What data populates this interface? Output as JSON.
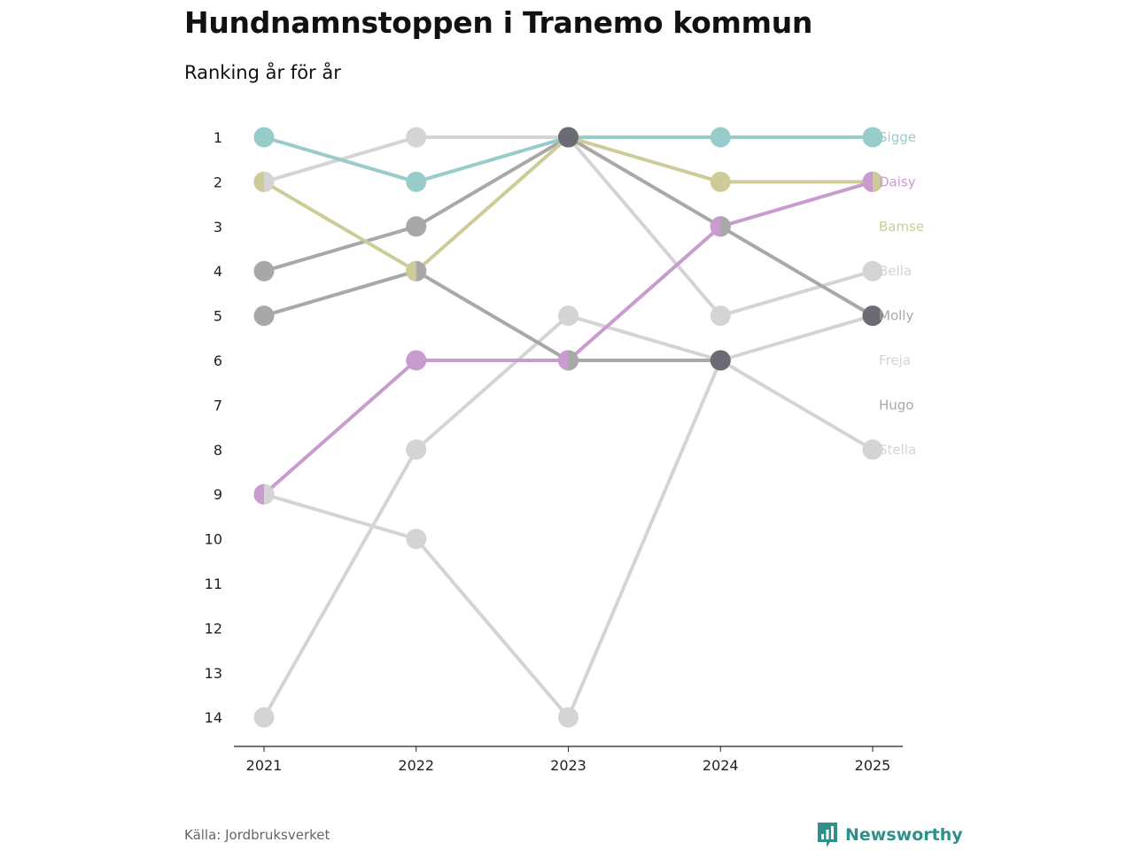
{
  "title": "Hundnamnstoppen i Tranemo kommun",
  "subtitle": "Ranking år för år",
  "source": "Källa: Jordbruksverket",
  "brand": {
    "name": "Newsworthy",
    "icon": "bar-chart-speech-icon",
    "color": "#2f8f8a"
  },
  "chart_data": {
    "type": "line",
    "subtype": "bump",
    "x": [
      "2021",
      "2022",
      "2023",
      "2024",
      "2025"
    ],
    "y_ticks": [
      "1",
      "2",
      "3",
      "4",
      "5",
      "6",
      "7",
      "8",
      "9",
      "10",
      "11",
      "12",
      "13",
      "14"
    ],
    "ylim": [
      1,
      14
    ],
    "y_inverted": true,
    "series": [
      {
        "name": "Freja",
        "color": "#d4d4d4",
        "values": [
          14,
          8,
          5,
          6,
          5
        ]
      },
      {
        "name": "Stella",
        "color": "#d4d4d4",
        "values": [
          9,
          10,
          14,
          6,
          8
        ]
      },
      {
        "name": "Bella",
        "color": "#d4d4d4",
        "values": [
          2,
          1,
          1,
          5,
          4
        ]
      },
      {
        "name": "Hugo",
        "color": "#a8a8a8",
        "values": [
          5,
          4,
          6,
          6,
          null
        ]
      },
      {
        "name": "Molly",
        "color": "#a8a8a8",
        "values": [
          4,
          3,
          1,
          3,
          5
        ]
      },
      {
        "name": "Bamse",
        "color": "#cdcc98",
        "values": [
          2,
          4,
          1,
          2,
          2
        ]
      },
      {
        "name": "Daisy",
        "color": "#c99bcf",
        "values": [
          9,
          6,
          6,
          3,
          2
        ]
      },
      {
        "name": "Sigge",
        "color": "#98cccb",
        "values": [
          1,
          2,
          1,
          1,
          1
        ]
      }
    ],
    "labels": [
      {
        "name": "Sigge",
        "rank": 1,
        "color": "#98cccb"
      },
      {
        "name": "Daisy",
        "rank": 2,
        "color": "#c99bcf"
      },
      {
        "name": "Bamse",
        "rank": 3,
        "color": "#cdcc98"
      },
      {
        "name": "Bella",
        "rank": 4,
        "color": "#d4d4d4"
      },
      {
        "name": "Molly",
        "rank": 5,
        "color": "#a8a8a8"
      },
      {
        "name": "Freja",
        "rank": 6,
        "color": "#d4d4d4"
      },
      {
        "name": "Hugo",
        "rank": 7,
        "color": "#a8a8a8"
      },
      {
        "name": "Stella",
        "rank": 8,
        "color": "#d4d4d4"
      }
    ],
    "highlighted_points": [
      {
        "x": "2023",
        "rank": 1,
        "color": "#6b6b73"
      },
      {
        "x": "2024",
        "rank": 6,
        "color": "#6b6b73"
      },
      {
        "x": "2025",
        "rank": 5,
        "color": "#6b6b73"
      }
    ],
    "split_points": [
      {
        "x": "2021",
        "rank": 2,
        "colors": [
          "#cdcc98",
          "#d4d4d4"
        ]
      },
      {
        "x": "2022",
        "rank": 4,
        "colors": [
          "#cdcc98",
          "#a8a8a8"
        ]
      },
      {
        "x": "2021",
        "rank": 9,
        "colors": [
          "#c99bcf",
          "#d4d4d4"
        ]
      },
      {
        "x": "2023",
        "rank": 6,
        "colors": [
          "#c99bcf",
          "#a8a8a8"
        ]
      },
      {
        "x": "2024",
        "rank": 3,
        "colors": [
          "#c99bcf",
          "#a8a8a8"
        ]
      },
      {
        "x": "2025",
        "rank": 2,
        "colors": [
          "#c99bcf",
          "#cdcc98"
        ]
      }
    ]
  }
}
